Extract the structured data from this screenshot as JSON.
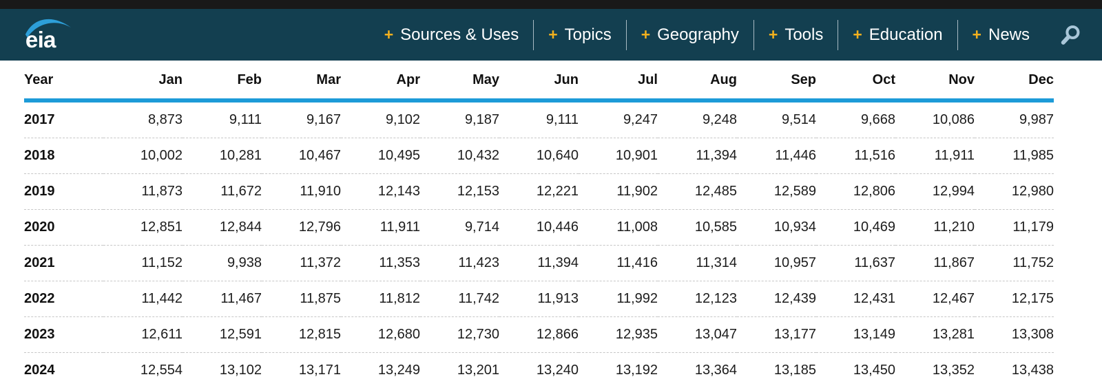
{
  "nav": {
    "logo_text": "eia",
    "plus_glyph": "+",
    "items": [
      "Sources & Uses",
      "Topics",
      "Geography",
      "Tools",
      "Education",
      "News"
    ]
  },
  "colors": {
    "top_bar": "#191919",
    "nav_background": "#133f50",
    "nav_text": "#ffffff",
    "plus_accent": "#f2b01e",
    "search_icon": "#a9c6d8",
    "logo_swoosh": "#2d9fd9",
    "header_underline": "#1d9bd8",
    "row_divider": "#c6c6c6",
    "table_text": "#1c1c1c"
  },
  "table": {
    "columns": [
      "Year",
      "Jan",
      "Feb",
      "Mar",
      "Apr",
      "May",
      "Jun",
      "Jul",
      "Aug",
      "Sep",
      "Oct",
      "Nov",
      "Dec"
    ],
    "rows": [
      {
        "year": "2017",
        "values": [
          "8,873",
          "9,111",
          "9,167",
          "9,102",
          "9,187",
          "9,111",
          "9,247",
          "9,248",
          "9,514",
          "9,668",
          "10,086",
          "9,987"
        ]
      },
      {
        "year": "2018",
        "values": [
          "10,002",
          "10,281",
          "10,467",
          "10,495",
          "10,432",
          "10,640",
          "10,901",
          "11,394",
          "11,446",
          "11,516",
          "11,911",
          "11,985"
        ]
      },
      {
        "year": "2019",
        "values": [
          "11,873",
          "11,672",
          "11,910",
          "12,143",
          "12,153",
          "12,221",
          "11,902",
          "12,485",
          "12,589",
          "12,806",
          "12,994",
          "12,980"
        ]
      },
      {
        "year": "2020",
        "values": [
          "12,851",
          "12,844",
          "12,796",
          "11,911",
          "9,714",
          "10,446",
          "11,008",
          "10,585",
          "10,934",
          "10,469",
          "11,210",
          "11,179"
        ]
      },
      {
        "year": "2021",
        "values": [
          "11,152",
          "9,938",
          "11,372",
          "11,353",
          "11,423",
          "11,394",
          "11,416",
          "11,314",
          "10,957",
          "11,637",
          "11,867",
          "11,752"
        ]
      },
      {
        "year": "2022",
        "values": [
          "11,442",
          "11,467",
          "11,875",
          "11,812",
          "11,742",
          "11,913",
          "11,992",
          "12,123",
          "12,439",
          "12,431",
          "12,467",
          "12,175"
        ]
      },
      {
        "year": "2023",
        "values": [
          "12,611",
          "12,591",
          "12,815",
          "12,680",
          "12,730",
          "12,866",
          "12,935",
          "13,047",
          "13,177",
          "13,149",
          "13,281",
          "13,308"
        ]
      },
      {
        "year": "2024",
        "values": [
          "12,554",
          "13,102",
          "13,171",
          "13,249",
          "13,201",
          "13,240",
          "13,192",
          "13,364",
          "13,185",
          "13,450",
          "13,352",
          "13,438"
        ]
      }
    ]
  }
}
